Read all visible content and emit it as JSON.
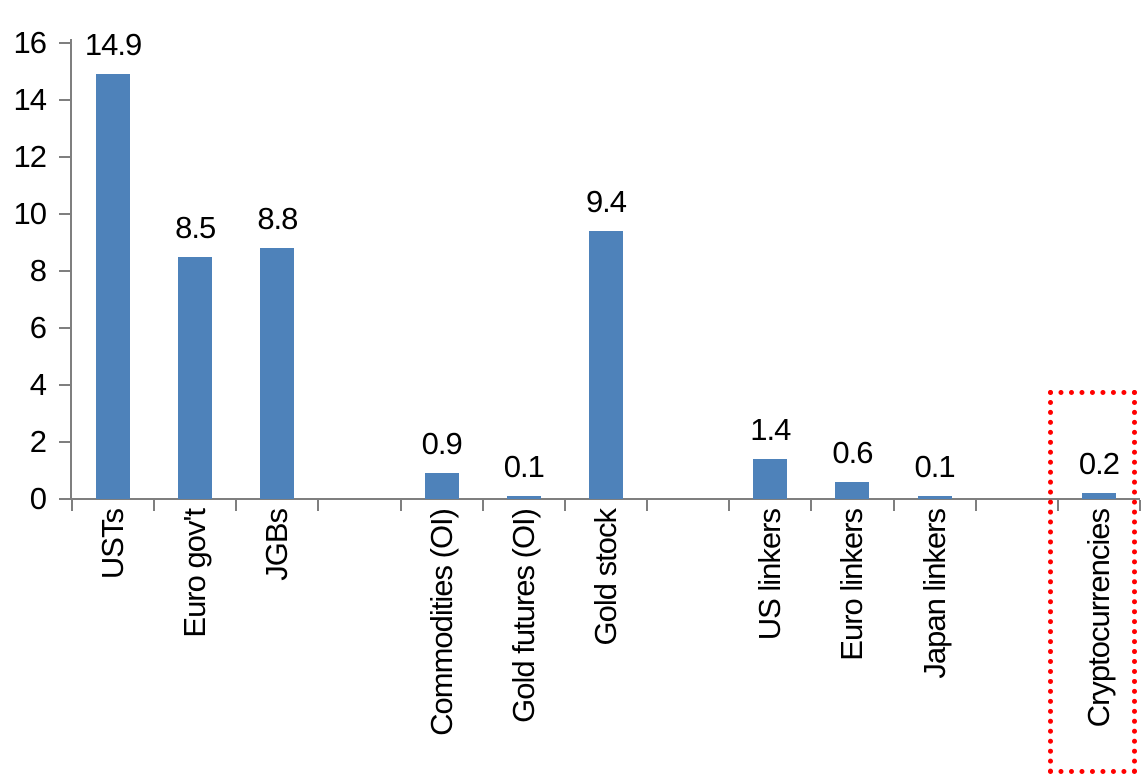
{
  "chart_data": {
    "type": "bar",
    "title": "",
    "xlabel": "",
    "ylabel": "",
    "categories": [
      "USTs",
      "Euro gov't",
      "JGBs",
      "Commodities (OI)",
      "Gold futures (OI)",
      "Gold stock",
      "US linkers",
      "Euro linkers",
      "Japan linkers",
      "Cryptocurrencies"
    ],
    "values": [
      14.9,
      8.5,
      8.8,
      0.9,
      0.1,
      9.4,
      1.4,
      0.6,
      0.1,
      0.2
    ],
    "value_labels": [
      "14.9",
      "8.5",
      "8.8",
      "0.9",
      "0.1",
      "9.4",
      "1.4",
      "0.6",
      "0.1",
      "0.2"
    ],
    "groups": [
      [
        "USTs",
        "Euro gov't",
        "JGBs"
      ],
      [
        "Commodities (OI)",
        "Gold futures (OI)",
        "Gold stock"
      ],
      [
        "US linkers",
        "Euro linkers",
        "Japan linkers"
      ],
      [
        "Cryptocurrencies"
      ]
    ],
    "ylim": [
      0,
      16
    ],
    "ytick_step": 2,
    "yticks": [
      0,
      2,
      4,
      6,
      8,
      10,
      12,
      14,
      16
    ],
    "grid": false,
    "legend": null,
    "bar_color": "#4e82ba",
    "axis_color": "#7f7f7f",
    "text_color": "#000000",
    "highlight": {
      "category": "Cryptocurrencies",
      "border_color": "#ff0000",
      "border_style": "dotted"
    }
  }
}
